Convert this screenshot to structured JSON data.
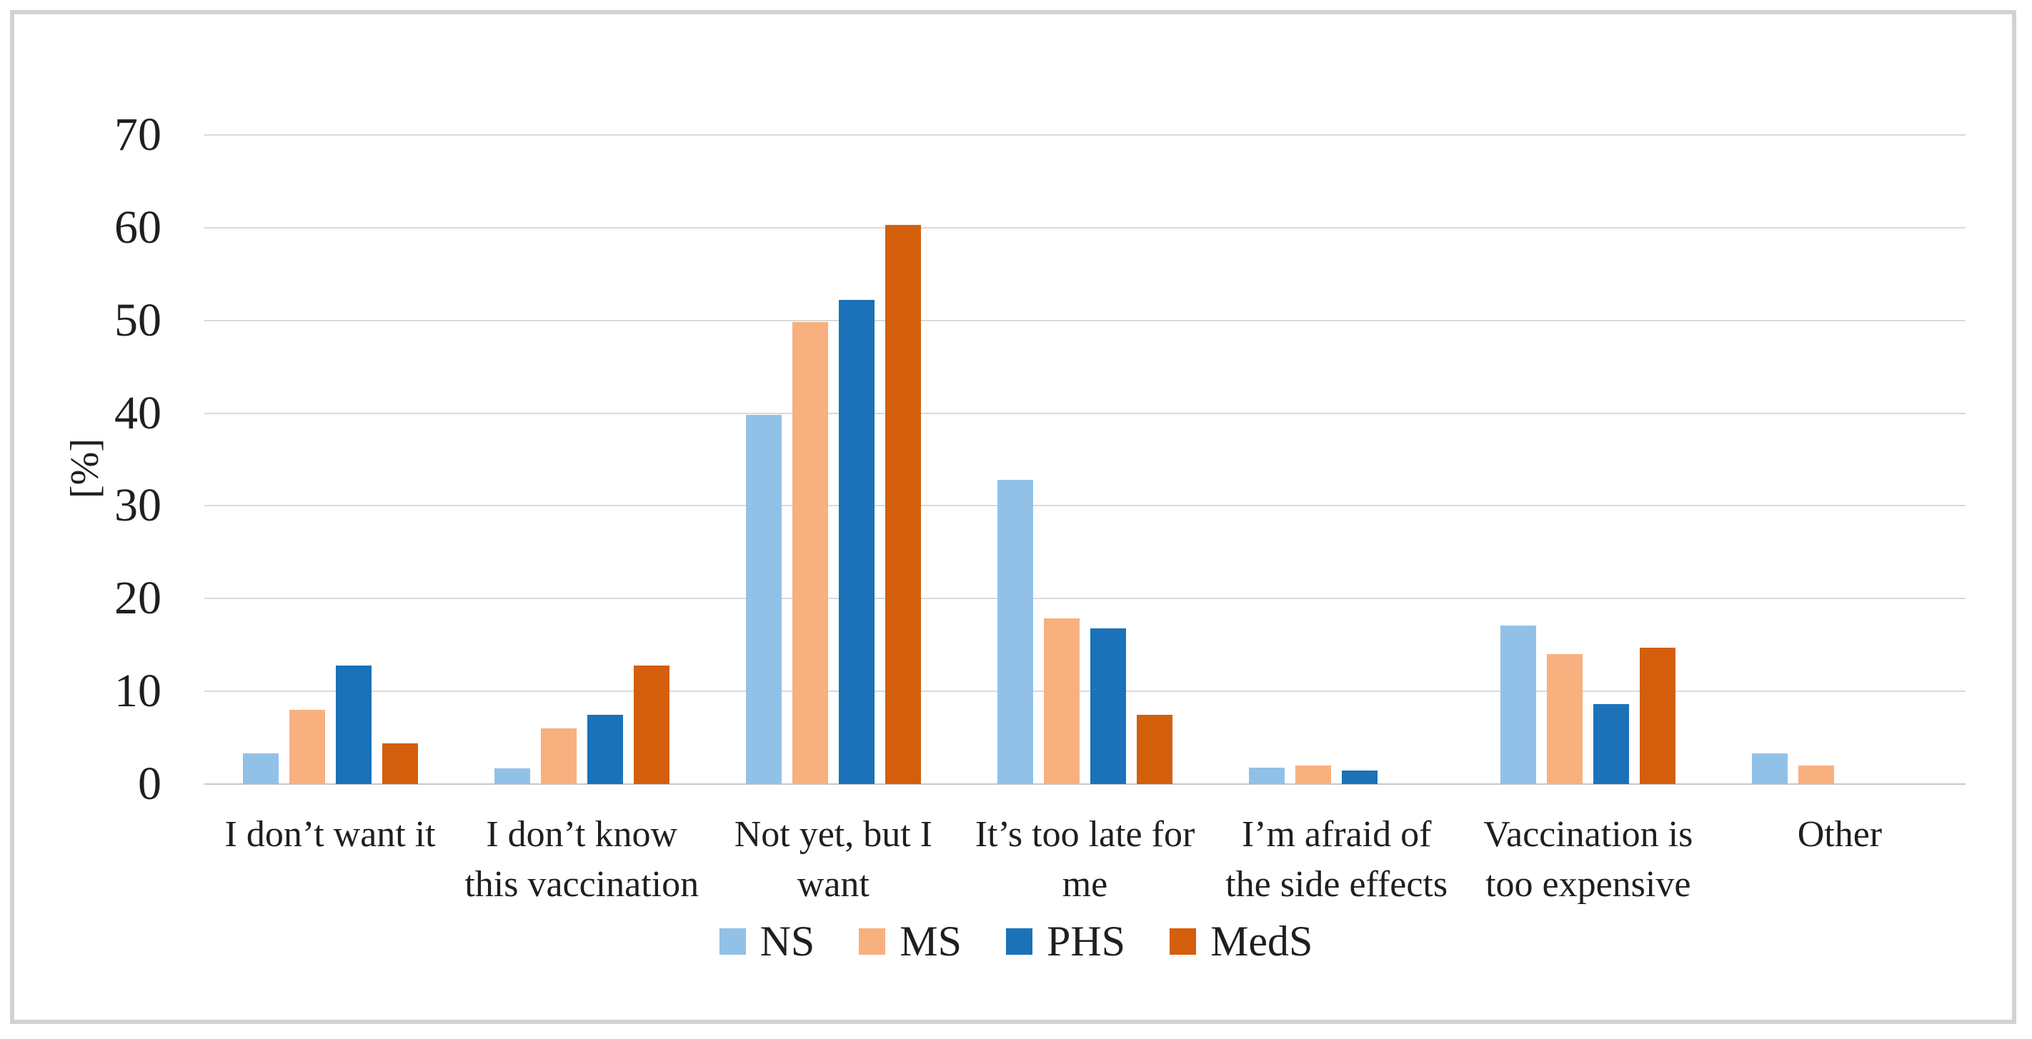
{
  "figure": {
    "background_color": "#ffffff",
    "border_color": "#d2d2d2",
    "text_color": "#1f1f1f",
    "gridline_color": "#d9d9d9"
  },
  "chart_data": {
    "type": "bar",
    "title": "",
    "xlabel": "",
    "ylabel": "[%]",
    "ylim": [
      0,
      70
    ],
    "yticks": [
      0,
      10,
      20,
      30,
      40,
      50,
      60,
      70
    ],
    "grid": true,
    "legend_position": "bottom",
    "categories": [
      "I don’t want it",
      "I don’t know this vaccination",
      "Not yet, but I want",
      "It’s too late for me",
      "I’m afraid of the side effects",
      "Vaccination is too expensive",
      "Other"
    ],
    "category_label_lines": [
      [
        "I don’t want it"
      ],
      [
        "I don’t know",
        "this vaccination"
      ],
      [
        "Not yet, but I",
        "want"
      ],
      [
        "It’s too late for",
        "me"
      ],
      [
        "I’m afraid of",
        "the side effects"
      ],
      [
        "Vaccination is",
        "too expensive"
      ],
      [
        "Other"
      ]
    ],
    "series": [
      {
        "name": "NS",
        "color": "#92C1E8",
        "values": [
          3.3,
          1.7,
          39.8,
          32.8,
          1.8,
          17.1,
          3.3
        ]
      },
      {
        "name": "MS",
        "color": "#F9B07F",
        "values": [
          8.0,
          6.0,
          49.8,
          17.9,
          2.0,
          14.0,
          2.0
        ]
      },
      {
        "name": "PHS",
        "color": "#1B72B8",
        "values": [
          12.8,
          7.5,
          52.2,
          16.8,
          1.5,
          8.6,
          0
        ]
      },
      {
        "name": "MedS",
        "color": "#D35F0D",
        "values": [
          4.4,
          12.8,
          60.3,
          7.5,
          0,
          14.7,
          0
        ]
      }
    ]
  }
}
